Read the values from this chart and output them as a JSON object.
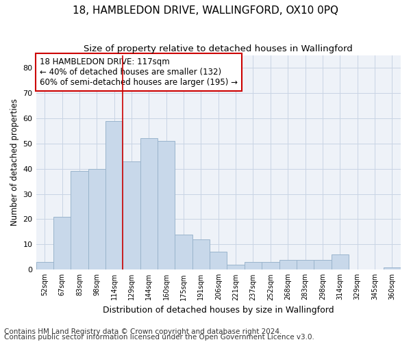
{
  "title": "18, HAMBLEDON DRIVE, WALLINGFORD, OX10 0PQ",
  "subtitle": "Size of property relative to detached houses in Wallingford",
  "xlabel": "Distribution of detached houses by size in Wallingford",
  "ylabel": "Number of detached properties",
  "categories": [
    "52sqm",
    "67sqm",
    "83sqm",
    "98sqm",
    "114sqm",
    "129sqm",
    "144sqm",
    "160sqm",
    "175sqm",
    "191sqm",
    "206sqm",
    "221sqm",
    "237sqm",
    "252sqm",
    "268sqm",
    "283sqm",
    "298sqm",
    "314sqm",
    "329sqm",
    "345sqm",
    "360sqm"
  ],
  "values": [
    3,
    21,
    39,
    40,
    59,
    43,
    52,
    51,
    14,
    12,
    7,
    2,
    3,
    3,
    4,
    4,
    4,
    6,
    0,
    0,
    1
  ],
  "bar_color": "#c8d8ea",
  "bar_edgecolor": "#9ab4cc",
  "bar_linewidth": 0.7,
  "vline_color": "#cc0000",
  "vline_linewidth": 1.2,
  "vline_position": 4.5,
  "annotation_text_line1": "18 HAMBLEDON DRIVE: 117sqm",
  "annotation_text_line2": "← 40% of detached houses are smaller (132)",
  "annotation_text_line3": "60% of semi-detached houses are larger (195) →",
  "annotation_box_edgecolor": "#cc0000",
  "annotation_fontsize": 8.5,
  "ylim": [
    0,
    85
  ],
  "yticks": [
    0,
    10,
    20,
    30,
    40,
    50,
    60,
    70,
    80
  ],
  "grid_color": "#c8d4e4",
  "bg_color": "#eef2f8",
  "footer_line1": "Contains HM Land Registry data © Crown copyright and database right 2024.",
  "footer_line2": "Contains public sector information licensed under the Open Government Licence v3.0.",
  "footer_fontsize": 7.5,
  "title_fontsize": 11,
  "subtitle_fontsize": 9.5,
  "xlabel_fontsize": 9,
  "ylabel_fontsize": 8.5
}
